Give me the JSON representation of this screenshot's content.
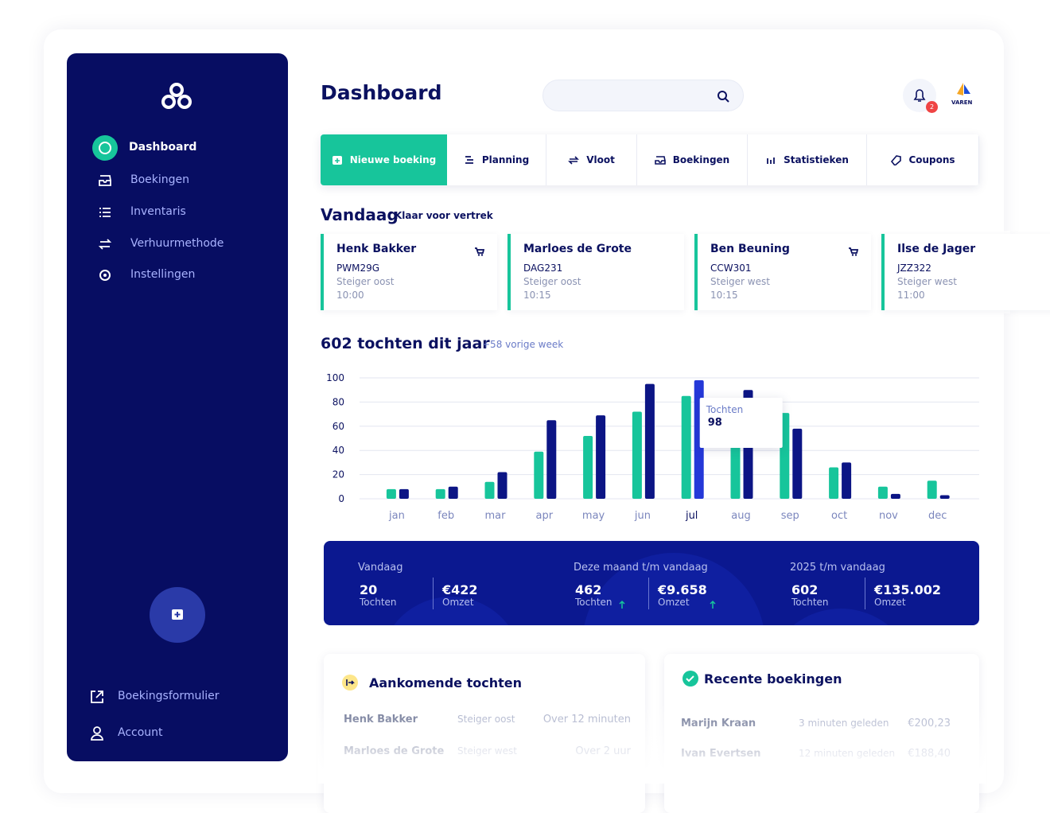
{
  "sidebar": {
    "nav": [
      "Dashboard",
      "Boekingen",
      "Inventaris",
      "Verhuurmethode",
      "Instellingen"
    ],
    "footer": [
      "Boekingsformulier",
      "Account"
    ]
  },
  "header": {
    "title": "Dashboard",
    "notifications": 2,
    "logo": "VAREN"
  },
  "tabs": [
    "Nieuwe boeking",
    "Planning",
    "Vloot",
    "Boekingen",
    "Statistieken",
    "Coupons"
  ],
  "today": {
    "title": "Vandaag",
    "subtitle": "Klaar voor vertrek",
    "cards": [
      {
        "name": "Henk Bakker",
        "code": "PWM29G",
        "location": "Steiger oost",
        "time": "10:00",
        "cart": true
      },
      {
        "name": "Marloes de Grote",
        "code": "DAG231",
        "location": "Steiger oost",
        "time": "10:15",
        "cart": false
      },
      {
        "name": "Ben Beuning",
        "code": "CCW301",
        "location": "Steiger west",
        "time": "10:15",
        "cart": true
      },
      {
        "name": "Ilse de Jager",
        "code": "JZZ322",
        "location": "Steiger west",
        "time": "11:00",
        "cart": false
      }
    ]
  },
  "chart_data": {
    "type": "bar",
    "title": "602 tochten dit jaar",
    "subtitle": "+58 vorige week",
    "categories": [
      "jan",
      "feb",
      "mar",
      "apr",
      "may",
      "jun",
      "jul",
      "aug",
      "sep",
      "oct",
      "nov",
      "dec"
    ],
    "series": [
      {
        "color": "#17c59b",
        "values": [
          8,
          8,
          14,
          39,
          52,
          72,
          85,
          70,
          71,
          26,
          10,
          15
        ]
      },
      {
        "color": "#0c1585",
        "values": [
          8,
          10,
          22,
          65,
          69,
          95,
          98,
          90,
          58,
          30,
          4,
          3
        ]
      }
    ],
    "ylim": [
      0,
      100
    ],
    "yticks": [
      0,
      20,
      40,
      60,
      80,
      100
    ],
    "grid": true,
    "tooltip": {
      "label": "Tochten",
      "value": 98
    }
  },
  "stats": [
    {
      "title": "Vandaag",
      "trend": false,
      "items": [
        {
          "value": "20",
          "label": "Tochten"
        },
        {
          "value": "€422",
          "label": "Omzet"
        }
      ]
    },
    {
      "title": "Deze maand t/m vandaag",
      "trend": true,
      "items": [
        {
          "value": "462",
          "label": "Tochten"
        },
        {
          "value": "€9.658",
          "label": "Omzet"
        }
      ]
    },
    {
      "title": "2025 t/m vandaag",
      "trend": false,
      "items": [
        {
          "value": "602",
          "label": "Tochten"
        },
        {
          "value": "€135.002",
          "label": "Omzet"
        }
      ]
    }
  ],
  "upcoming": {
    "title": "Aankomende tochten",
    "rows": [
      [
        "Henk Bakker",
        "Steiger oost",
        "Over 12 minuten"
      ],
      [
        "Marloes de Grote",
        "Steiger west",
        "Over 2 uur"
      ]
    ]
  },
  "recent": {
    "title": "Recente boekingen",
    "rows": [
      [
        "Marijn Kraan",
        "3 minuten geleden",
        "€200,23"
      ],
      [
        "Ivan Evertsen",
        "12 minuten geleden",
        "€188,40"
      ]
    ]
  }
}
